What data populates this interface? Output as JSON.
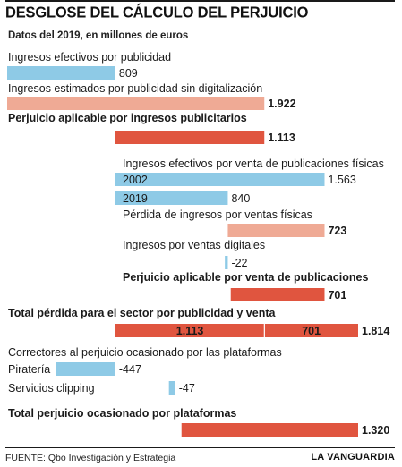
{
  "header": {
    "title": "DESGLOSE DEL CÁLCULO DEL PERJUICIO",
    "subtitle": "Datos del 2019, en millones de euros"
  },
  "footer": {
    "source": "FUENTE: Qbo Investigación y Estrategia",
    "brand": "LA VANGUARDIA"
  },
  "colors": {
    "blue": "#8ecae6",
    "salmon": "#efaa95",
    "red": "#e0553f",
    "red_text": "#e0553f",
    "divider": "#ffffff"
  },
  "chart_data": {
    "type": "bar",
    "title": "DESGLOSE DEL CÁLCULO DEL PERJUICIO",
    "subtitle": "Datos del 2019, en millones de euros",
    "rows": [
      {
        "label": "Ingresos efectivos por publicidad",
        "bar_label": "",
        "start": 0,
        "value": 809,
        "display": "809",
        "color": "blue",
        "bold_label": false,
        "value_style": "normal"
      },
      {
        "label": "Ingresos estimados por publicidad sin digitalización",
        "bar_label": "",
        "start": 0,
        "value": 1922,
        "display": "1.922",
        "color": "salmon",
        "bold_label": false,
        "value_style": "bold"
      },
      {
        "label": "Perjuicio aplicable por ingresos publicitarios",
        "bar_label": "",
        "start": 809,
        "value": 1113,
        "display": "1.113",
        "color": "red",
        "bold_label": true,
        "value_style": "red"
      },
      {
        "label": "Ingresos efectivos por venta de publicaciones físicas",
        "bar_label": "2002",
        "start": 809,
        "value": 1563,
        "display": "1.563",
        "color": "blue",
        "bold_label": false,
        "value_style": "normal"
      },
      {
        "label": "",
        "bar_label": "2019",
        "start": 809,
        "value": 840,
        "display": "840",
        "color": "blue",
        "bold_label": false,
        "value_style": "normal"
      },
      {
        "label": "Pérdida de ingresos por ventas físicas",
        "bar_label": "",
        "start": 1649,
        "value": 723,
        "display": "723",
        "color": "salmon",
        "bold_label": false,
        "value_style": "bold"
      },
      {
        "label": "Ingresos por ventas digitales",
        "bar_label": "",
        "start": 1649,
        "value": -22,
        "display": "-22",
        "color": "blue",
        "bold_label": false,
        "value_style": "normal"
      },
      {
        "label": "Perjuicio aplicable por venta de publicaciones",
        "bar_label": "",
        "start": 1671,
        "value": 701,
        "display": "701",
        "color": "red",
        "bold_label": true,
        "value_style": "red"
      },
      {
        "label": "Total pérdida para el sector por publicidad y venta",
        "bar_label": "",
        "start": 809,
        "value": 1814,
        "display": "1.814",
        "color": "red",
        "bold_label": true,
        "value_style": "red",
        "segments": [
          {
            "value": 1113,
            "display": "1.113"
          },
          {
            "value": 701,
            "display": "701"
          }
        ]
      },
      {
        "label": "Correctores al perjuicio ocasionado por las plataformas",
        "bar_label": "Piratería",
        "start": 809,
        "value": -447,
        "display": "-447",
        "color": "blue",
        "bold_label": false,
        "value_style": "normal"
      },
      {
        "label": "",
        "bar_label": "Servicios clipping",
        "start": 1256,
        "value": -47,
        "display": "-47",
        "color": "blue",
        "bold_label": false,
        "value_style": "normal"
      },
      {
        "label": "Total perjuicio ocasionado por plataformas",
        "bar_label": "",
        "start": 1303,
        "value": 1320,
        "display": "1.320",
        "color": "red",
        "bold_label": true,
        "value_style": "red"
      }
    ],
    "xlim": [
      0,
      2623
    ],
    "grid": false,
    "legend": "none"
  }
}
